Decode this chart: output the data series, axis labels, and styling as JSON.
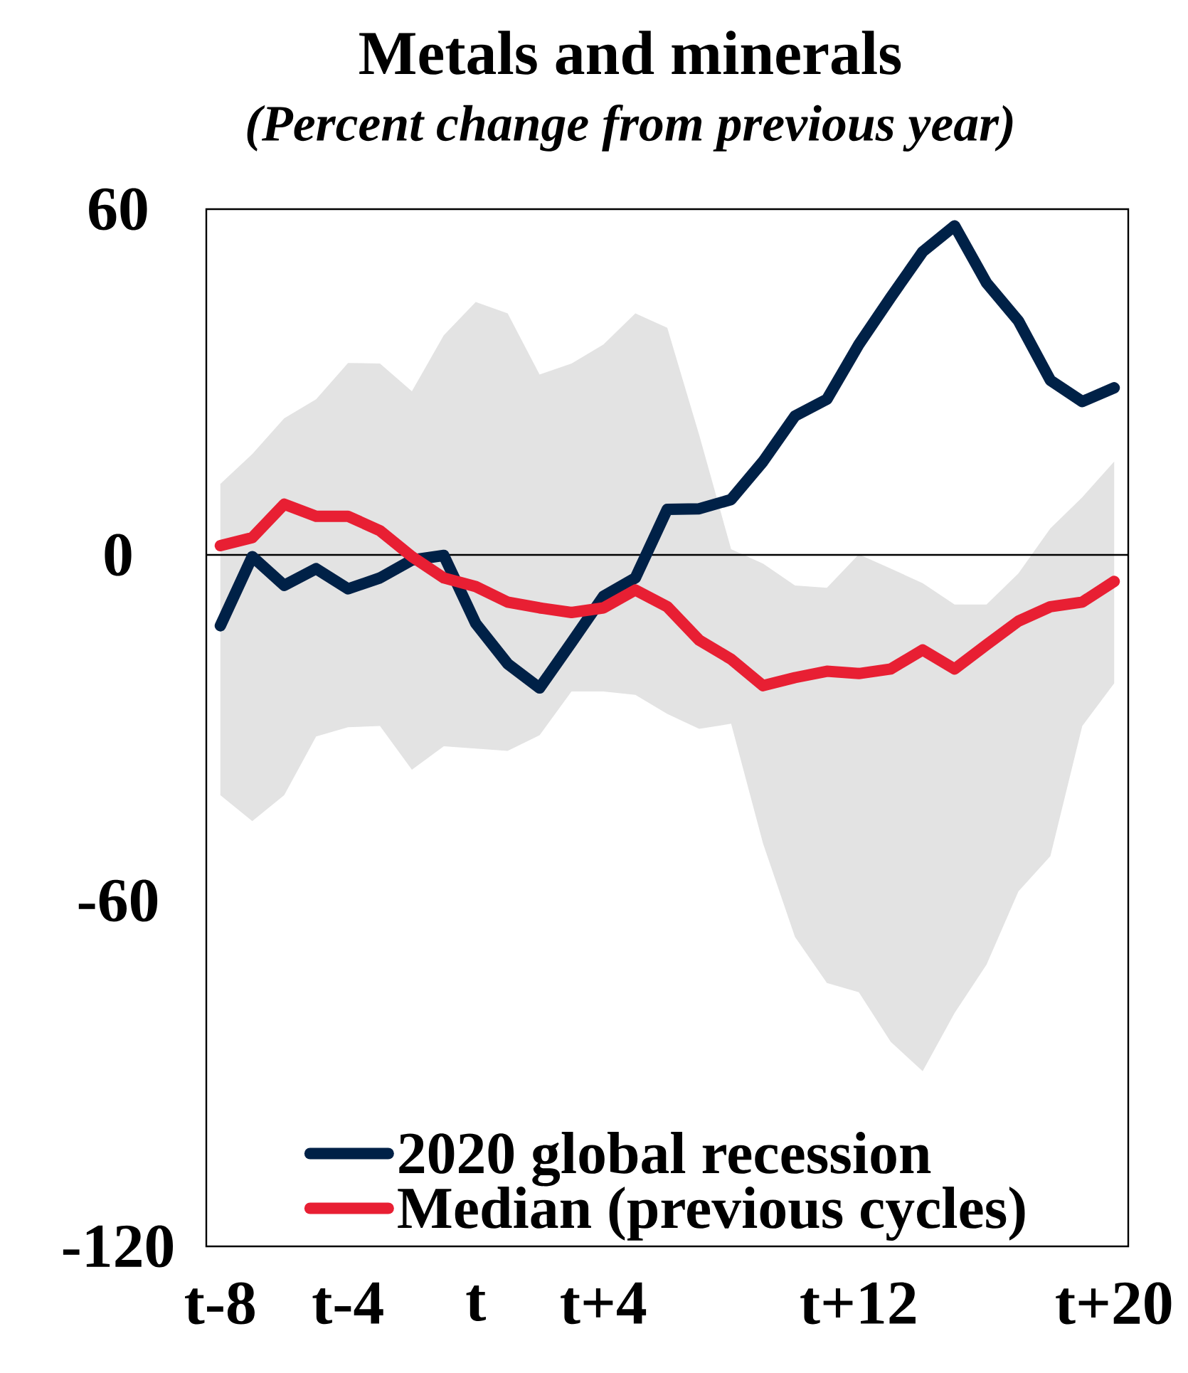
{
  "chart_data": {
    "type": "line",
    "title": "Metals and minerals",
    "subtitle": "(Percent change from previous year)",
    "categories": [
      "t-8",
      null,
      null,
      null,
      "t-4",
      null,
      null,
      null,
      "t",
      null,
      null,
      null,
      "t+4",
      null,
      null,
      null,
      null,
      null,
      null,
      null,
      "t+12",
      null,
      null,
      null,
      null,
      null,
      null,
      null,
      "t+20"
    ],
    "series": [
      {
        "name": "2020 global recession",
        "color": "#002147",
        "values": [
          -12.3,
          -0.3,
          -5.3,
          -2.4,
          -5.9,
          -4.0,
          -0.9,
          -0.1,
          -11.9,
          -18.9,
          -23.1,
          -15.2,
          -7.2,
          -4.0,
          7.9,
          8.0,
          9.6,
          16.2,
          24.1,
          27.0,
          36.5,
          44.7,
          52.6,
          57.1,
          47.2,
          40.6,
          30.3,
          26.6,
          29.0
        ]
      },
      {
        "name": "Median (previous cycles)",
        "color": "#e81f33",
        "values": [
          1.6,
          3.0,
          8.8,
          6.7,
          6.7,
          4.2,
          -0.3,
          -4.0,
          -5.5,
          -8.2,
          -9.2,
          -10.0,
          -9.2,
          -6.1,
          -9.0,
          -14.8,
          -18.1,
          -22.7,
          -21.3,
          -20.2,
          -20.6,
          -19.8,
          -16.5,
          -19.8,
          -15.6,
          -11.5,
          -9.0,
          -8.2,
          -4.6
        ],
        "lower": [
          -41.7,
          -46.2,
          -41.7,
          -31.5,
          -29.9,
          -29.7,
          -37.3,
          -33.2,
          -33.6,
          -34.0,
          -31.3,
          -23.7,
          -23.7,
          -24.3,
          -27.6,
          -30.2,
          -29.3,
          -50.1,
          -66.3,
          -74.3,
          -75.9,
          -84.5,
          -89.6,
          -79.5,
          -71.1,
          -58.4,
          -52.3,
          -29.7,
          -22.3
        ],
        "upper": [
          12.3,
          17.5,
          23.7,
          27.0,
          33.3,
          33.2,
          28.4,
          38.1,
          43.9,
          41.9,
          31.3,
          33.2,
          36.5,
          41.9,
          39.4,
          20.8,
          1.0,
          -1.5,
          -5.3,
          -5.7,
          0.1,
          -2.39,
          -4.9,
          -8.6,
          -8.6,
          -3.2,
          4.6,
          10.0,
          16.2
        ]
      }
    ],
    "ylim": [
      -120,
      60
    ],
    "yticks": [
      -120,
      -60,
      0,
      60
    ],
    "ref_lines": [
      {
        "axis": "y",
        "value": 0,
        "color": "#000000"
      }
    ],
    "legend": "bottom",
    "marker": "none",
    "line_style": "solid"
  }
}
